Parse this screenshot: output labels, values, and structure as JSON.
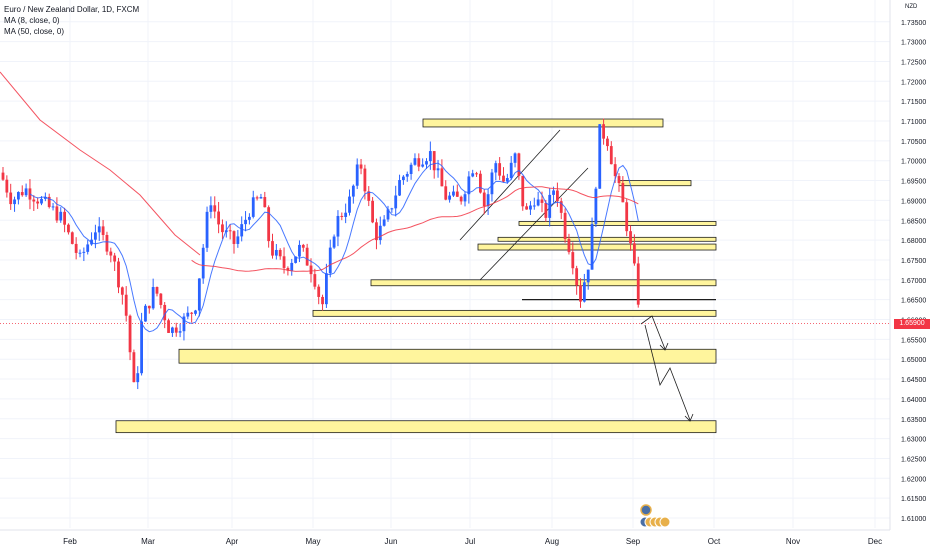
{
  "header": {
    "title": "Euro / New Zealand Dollar, 1D, FXCM",
    "indicators": [
      "MA (8, close, 0)",
      "MA (50, close, 0)"
    ],
    "currency": "NZD"
  },
  "price_tag": "1.65900",
  "colors": {
    "up": "#2962ff",
    "down": "#f23645",
    "ma_fast": "#2962ff",
    "ma_slow": "#f23645",
    "zone_fill": "#fff59d",
    "zone_border": "#1e1e1e",
    "grid": "#f0f3fa"
  },
  "chart_data": {
    "type": "candlestick",
    "title": "Euro / New Zealand Dollar, 1D, FXCM",
    "x_axis": {
      "labels": [
        "Feb",
        "Mar",
        "Apr",
        "May",
        "Jun",
        "Jul",
        "Aug",
        "Sep",
        "Oct",
        "Nov",
        "Dec"
      ]
    },
    "y_axis": {
      "side": "right",
      "range": [
        1.605,
        1.738
      ],
      "ticks": [
        "1.73500",
        "1.73000",
        "1.72500",
        "1.72000",
        "1.71500",
        "1.71000",
        "1.70500",
        "1.70000",
        "1.69500",
        "1.69000",
        "1.68500",
        "1.68000",
        "1.67500",
        "1.67000",
        "1.66500",
        "1.66000",
        "1.65500",
        "1.65000",
        "1.64500",
        "1.64000",
        "1.63500",
        "1.63000",
        "1.62500",
        "1.62000",
        "1.61500",
        "1.61000"
      ],
      "tick_values": [
        1.735,
        1.73,
        1.725,
        1.72,
        1.715,
        1.71,
        1.705,
        1.7,
        1.695,
        1.69,
        1.685,
        1.68,
        1.675,
        1.67,
        1.665,
        1.66,
        1.655,
        1.65,
        1.645,
        1.64,
        1.635,
        1.63,
        1.625,
        1.62,
        1.615,
        1.61
      ]
    },
    "grid": true,
    "last_price": 1.659,
    "zones": [
      {
        "from": "Jun",
        "to": "Sep",
        "top": 1.7105,
        "bottom": 1.7085
      },
      {
        "from": "Sep",
        "to": "Sep",
        "top": 1.695,
        "bottom": 1.6937
      },
      {
        "from": "Aug",
        "to": "Sep",
        "top": 1.6847,
        "bottom": 1.6837
      },
      {
        "from": "Jul",
        "to": "Sep",
        "top": 1.6807,
        "bottom": 1.6797
      },
      {
        "from": "Jul",
        "to": "Sep",
        "top": 1.679,
        "bottom": 1.6775
      },
      {
        "from": "May",
        "to": "Sep",
        "top": 1.67,
        "bottom": 1.6685
      },
      {
        "from": "May",
        "to": "Sep",
        "top": 1.6623,
        "bottom": 1.6608
      },
      {
        "from": "Mar",
        "to": "Sep",
        "top": 1.6525,
        "bottom": 1.649
      },
      {
        "from": "Feb",
        "to": "Sep",
        "top": 1.6345,
        "bottom": 1.6315
      }
    ]
  }
}
